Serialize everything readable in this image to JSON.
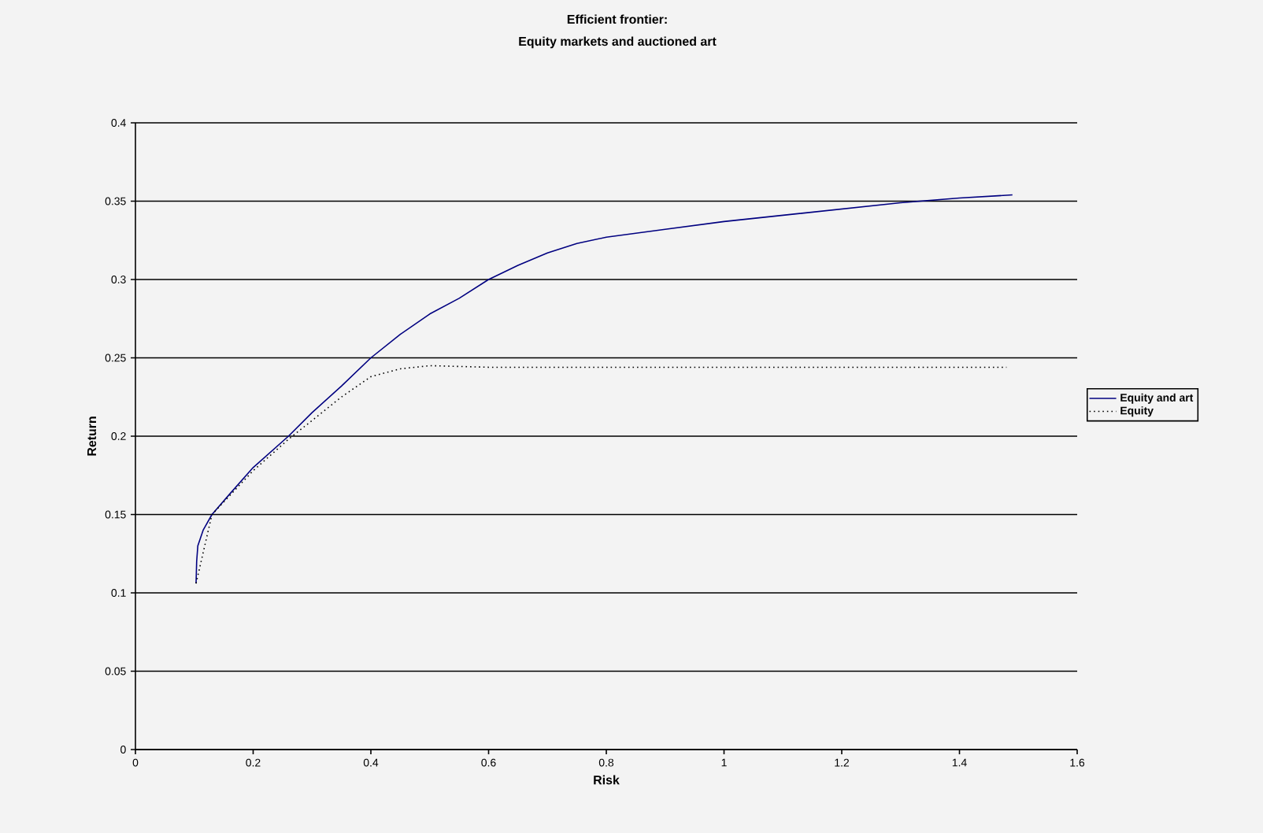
{
  "chart_data": {
    "type": "line",
    "title": "Efficient frontier:",
    "subtitle": "Equity markets and auctioned art",
    "xlabel": "Risk",
    "ylabel": "Return",
    "xlim": [
      0,
      1.6
    ],
    "xticks": [
      0,
      0.2,
      0.4,
      0.6,
      0.8,
      1,
      1.2,
      1.4,
      1.6
    ],
    "ylim": [
      0,
      0.4
    ],
    "yticks": [
      0,
      0.05,
      0.1,
      0.15,
      0.2,
      0.25,
      0.3,
      0.35,
      0.4
    ],
    "grid": "y",
    "legend": "right",
    "marker": "none",
    "series": [
      {
        "name": "Equity and art",
        "color": "#000080",
        "line_style": "solid",
        "x": [
          0.103,
          0.104,
          0.106,
          0.115,
          0.13,
          0.16,
          0.2,
          0.26,
          0.3,
          0.35,
          0.4,
          0.45,
          0.5,
          0.55,
          0.6,
          0.65,
          0.7,
          0.75,
          0.8,
          0.9,
          1.0,
          1.1,
          1.2,
          1.3,
          1.4,
          1.49
        ],
        "values": [
          0.106,
          0.12,
          0.13,
          0.14,
          0.15,
          0.163,
          0.18,
          0.2,
          0.215,
          0.232,
          0.25,
          0.265,
          0.278,
          0.288,
          0.3,
          0.309,
          0.317,
          0.323,
          0.327,
          0.332,
          0.337,
          0.341,
          0.345,
          0.349,
          0.352,
          0.354
        ]
      },
      {
        "name": "Equity",
        "color": "#000000",
        "line_style": "dotted",
        "x": [
          0.103,
          0.13,
          0.2,
          0.26,
          0.3,
          0.35,
          0.4,
          0.45,
          0.5,
          0.6,
          0.8,
          1.0,
          1.2,
          1.48
        ],
        "values": [
          0.106,
          0.15,
          0.178,
          0.198,
          0.21,
          0.225,
          0.238,
          0.243,
          0.245,
          0.244,
          0.244,
          0.244,
          0.244,
          0.244
        ]
      }
    ]
  }
}
